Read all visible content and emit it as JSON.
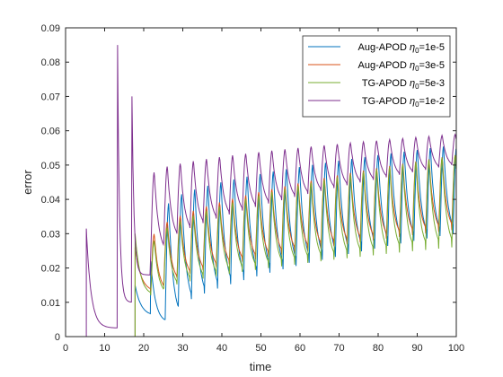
{
  "chart_data": {
    "type": "line",
    "xlabel": "time",
    "ylabel": "error",
    "xlim": [
      0,
      100
    ],
    "ylim": [
      0,
      0.09
    ],
    "xticks": [
      0,
      10,
      20,
      30,
      40,
      50,
      60,
      70,
      80,
      90,
      100
    ],
    "xtick_labels": [
      "0",
      "10",
      "20",
      "30",
      "40",
      "50",
      "60",
      "70",
      "80",
      "90",
      "100"
    ],
    "yticks": [
      0,
      0.01,
      0.02,
      0.03,
      0.04,
      0.05,
      0.06,
      0.07,
      0.08,
      0.09
    ],
    "ytick_labels": [
      "0",
      "0.01",
      "0.02",
      "0.03",
      "0.04",
      "0.05",
      "0.06",
      "0.07",
      "0.08",
      "0.09"
    ],
    "grid": false,
    "legend_position": "top-right",
    "period": 3.35,
    "series": [
      {
        "name_prefix": "Aug-APOD ",
        "name_symbol": "η",
        "name_sub": "0",
        "name_suffix": "=1e-5",
        "color": "#0072BD",
        "start": 25.5,
        "pre_peak": 0.004,
        "pre_peak_time": 21.8,
        "first_peak": 0.033,
        "trough": [
          0.005,
          0.03
        ],
        "peak": [
          0.039,
          0.056
        ],
        "tau": 5.5
      },
      {
        "name_prefix": "Aug-APOD ",
        "name_symbol": "η",
        "name_sub": "0",
        "name_suffix": "=3e-5",
        "color": "#D95319",
        "start": 21.8,
        "pre_peak": 0.026,
        "pre_peak_time": 17.8,
        "first_peak": 0.031,
        "trough": [
          0.013,
          0.031
        ],
        "peak": [
          0.03,
          0.053
        ],
        "tau": 5.5
      },
      {
        "name_prefix": "TG-APOD ",
        "name_symbol": "η",
        "name_sub": "0",
        "name_suffix": "=5e-3",
        "color": "#77AC30",
        "start": 17.8,
        "pre_peak": 0.03,
        "pre_peak_time": 17.8,
        "first_peak": 0.03,
        "trough": [
          0.012,
          0.026
        ],
        "peak": [
          0.028,
          0.053
        ],
        "tau": 5.5
      },
      {
        "name_prefix": "TG-APOD ",
        "name_symbol": "η",
        "name_sub": "0",
        "name_suffix": "=1e-2",
        "color": "#7E2F8E",
        "start": 5.3,
        "pre_peak": 0.0315,
        "pre_peak_time": 5.3,
        "first_peak": 0.085,
        "second_peak": 0.07,
        "second_peak_time": 17.0,
        "first_peak_time": 13.3,
        "trough": [
          0.024,
          0.05
        ],
        "peak": [
          0.048,
          0.059
        ],
        "tau": 5.5
      }
    ]
  }
}
